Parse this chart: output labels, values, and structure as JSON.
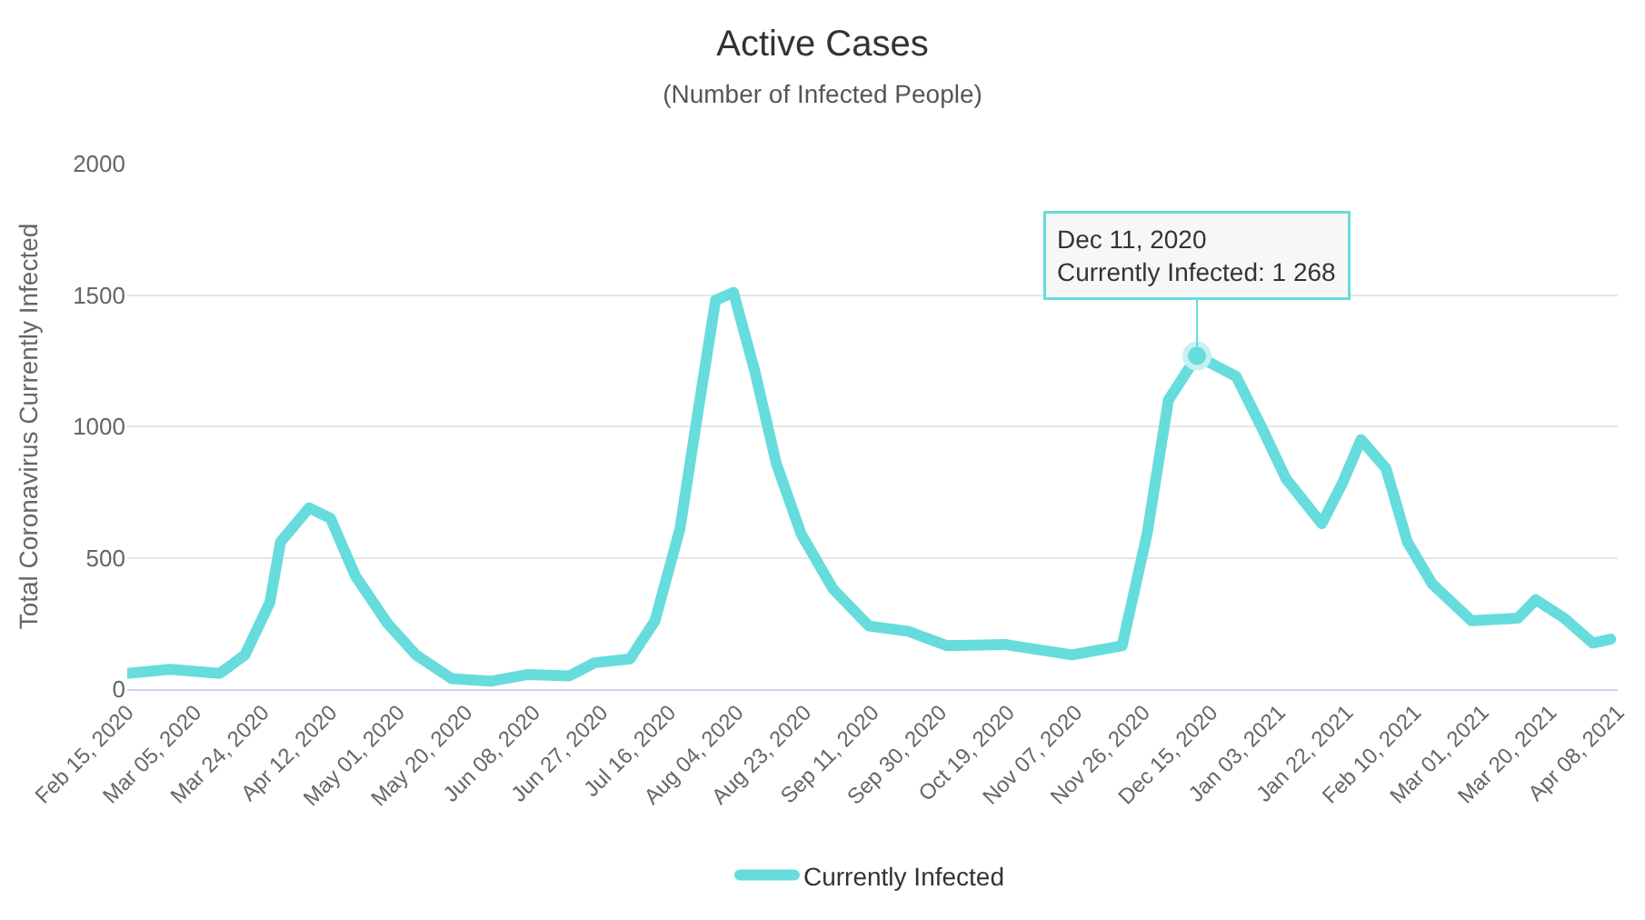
{
  "chart_data": {
    "type": "line",
    "title": "Active Cases",
    "subtitle": "(Number of Infected People)",
    "ylabel": "Total Coronavirus Currently Infected",
    "x": [
      "2020-02-15",
      "2020-02-27",
      "2020-03-12",
      "2020-03-19",
      "2020-03-26",
      "2020-03-29",
      "2020-04-06",
      "2020-04-12",
      "2020-04-19",
      "2020-04-28",
      "2020-05-06",
      "2020-05-16",
      "2020-05-27",
      "2020-06-06",
      "2020-06-18",
      "2020-06-25",
      "2020-07-05",
      "2020-07-12",
      "2020-07-19",
      "2020-07-24",
      "2020-07-29",
      "2020-08-03",
      "2020-08-09",
      "2020-08-15",
      "2020-08-22",
      "2020-08-31",
      "2020-09-10",
      "2020-09-21",
      "2020-10-02",
      "2020-10-18",
      "2020-11-06",
      "2020-11-20",
      "2020-11-27",
      "2020-12-03",
      "2020-12-11",
      "2020-12-22",
      "2020-12-29",
      "2021-01-05",
      "2021-01-15",
      "2021-01-21",
      "2021-01-26",
      "2021-02-02",
      "2021-02-08",
      "2021-02-15",
      "2021-02-26",
      "2021-03-11",
      "2021-03-16",
      "2021-03-24",
      "2021-04-01",
      "2021-04-06"
    ],
    "series": [
      {
        "name": "Currently Infected",
        "color": "#66dcdc",
        "values": [
          60,
          75,
          60,
          130,
          330,
          560,
          690,
          650,
          430,
          250,
          130,
          40,
          30,
          55,
          50,
          100,
          115,
          260,
          610,
          1050,
          1480,
          1510,
          1210,
          860,
          590,
          380,
          240,
          220,
          165,
          170,
          130,
          165,
          590,
          1100,
          1268,
          1190,
          1000,
          800,
          630,
          790,
          950,
          840,
          560,
          400,
          260,
          270,
          340,
          270,
          175,
          190
        ]
      }
    ],
    "ylim": [
      0,
      2000
    ],
    "yticks": [
      0,
      500,
      1000,
      1500,
      2000
    ],
    "xlim": [
      "2020-02-15",
      "2021-04-08"
    ],
    "xticks": [
      {
        "value": "2020-02-15",
        "label": "Feb 15, 2020"
      },
      {
        "value": "2020-03-05",
        "label": "Mar 05, 2020"
      },
      {
        "value": "2020-03-24",
        "label": "Mar 24, 2020"
      },
      {
        "value": "2020-04-12",
        "label": "Apr 12, 2020"
      },
      {
        "value": "2020-05-01",
        "label": "May 01, 2020"
      },
      {
        "value": "2020-05-20",
        "label": "May 20, 2020"
      },
      {
        "value": "2020-06-08",
        "label": "Jun 08, 2020"
      },
      {
        "value": "2020-06-27",
        "label": "Jun 27, 2020"
      },
      {
        "value": "2020-07-16",
        "label": "Jul 16, 2020"
      },
      {
        "value": "2020-08-04",
        "label": "Aug 04, 2020"
      },
      {
        "value": "2020-08-23",
        "label": "Aug 23, 2020"
      },
      {
        "value": "2020-09-11",
        "label": "Sep 11, 2020"
      },
      {
        "value": "2020-09-30",
        "label": "Sep 30, 2020"
      },
      {
        "value": "2020-10-19",
        "label": "Oct 19, 2020"
      },
      {
        "value": "2020-11-07",
        "label": "Nov 07, 2020"
      },
      {
        "value": "2020-11-26",
        "label": "Nov 26, 2020"
      },
      {
        "value": "2020-12-15",
        "label": "Dec 15, 2020"
      },
      {
        "value": "2021-01-03",
        "label": "Jan 03, 2021"
      },
      {
        "value": "2021-01-22",
        "label": "Jan 22, 2021"
      },
      {
        "value": "2021-02-10",
        "label": "Feb 10, 2021"
      },
      {
        "value": "2021-03-01",
        "label": "Mar 01, 2021"
      },
      {
        "value": "2021-03-20",
        "label": "Mar 20, 2021"
      },
      {
        "value": "2021-04-08",
        "label": "Apr 08, 2021"
      }
    ],
    "annotations": [
      {
        "text": "Dec 11, 2020\nCurrently Infected: 1 268",
        "x": "2020-12-11",
        "y": 1268
      }
    ],
    "grid": "y",
    "legend": "bottom",
    "marker": "none",
    "line_style": "solid"
  }
}
